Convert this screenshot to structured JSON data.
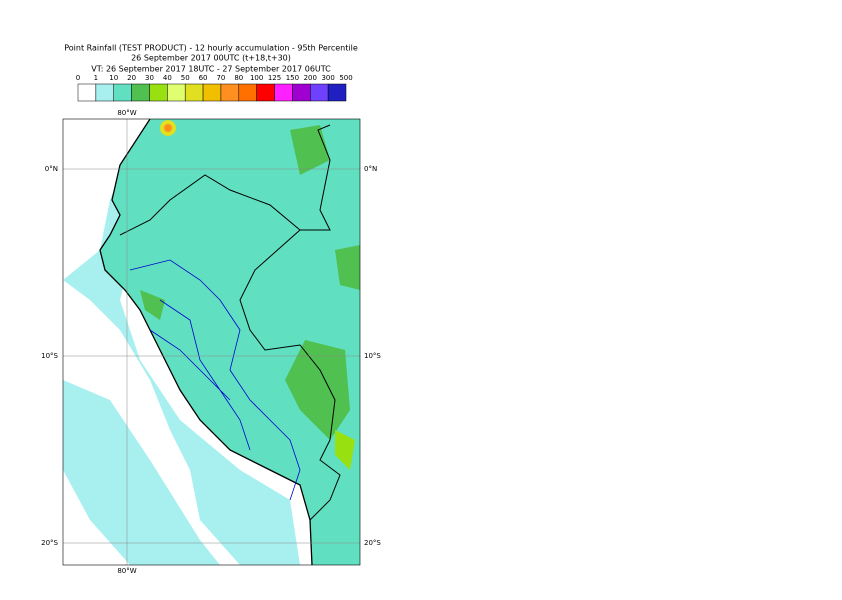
{
  "header": {
    "title": "Point Rainfall (TEST PRODUCT) - 12 hourly accumulation - 95th Percentile",
    "base_time": "26 September 2017 00UTC (t+18,t+30)",
    "valid_time": "VT: 26 September 2017 18UTC - 27 September 2017 06UTC"
  },
  "colorbar": {
    "labels": [
      0,
      1,
      10,
      20,
      30,
      40,
      50,
      60,
      70,
      80,
      100,
      125,
      150,
      200,
      300,
      500
    ],
    "colors": [
      "#ffffff",
      "#a8f0f0",
      "#60e0c0",
      "#50c050",
      "#98e010",
      "#e0ff70",
      "#e0e020",
      "#f0c000",
      "#ff9020",
      "#ff7000",
      "#ff0000",
      "#ff20ff",
      "#a000d0",
      "#7040ff",
      "#2020c0",
      "#101060"
    ]
  },
  "map": {
    "lon_label": "80°W",
    "lat_labels": [
      "0°N",
      "10°S",
      "20°S"
    ]
  }
}
